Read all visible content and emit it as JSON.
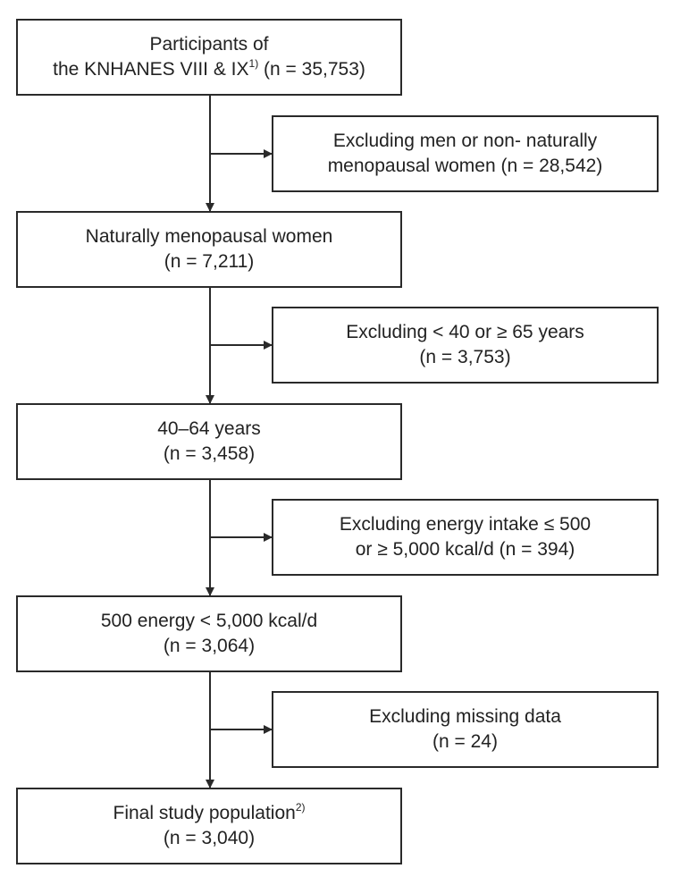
{
  "main_boxes": [
    {
      "line1": "Participants of",
      "line2": "the KNHANES VIII & IX",
      "line2_sup": "1)",
      "line2_after": " (n = 35,753)"
    },
    {
      "line1": "Naturally menopausal women",
      "line2": "(n = 7,211)"
    },
    {
      "line1": "40–64 years",
      "line2": "(n = 3,458)"
    },
    {
      "line1": "500 energy < 5,000 kcal/d",
      "line2": "(n = 3,064)"
    },
    {
      "line1": "Final study population",
      "line1_sup": "2)",
      "line2": "(n = 3,040)"
    }
  ],
  "exclusion_boxes": [
    {
      "line1": "Excluding men or non- naturally",
      "line2": "menopausal women (n = 28,542)"
    },
    {
      "line1": "Excluding < 40 or ≥ 65 years",
      "line2": "(n = 3,753)"
    },
    {
      "line1": "Excluding energy intake ≤ 500",
      "line2": "or ≥ 5,000 kcal/d (n = 394)"
    },
    {
      "line1": "Excluding missing data",
      "line2": "(n = 24)"
    }
  ]
}
